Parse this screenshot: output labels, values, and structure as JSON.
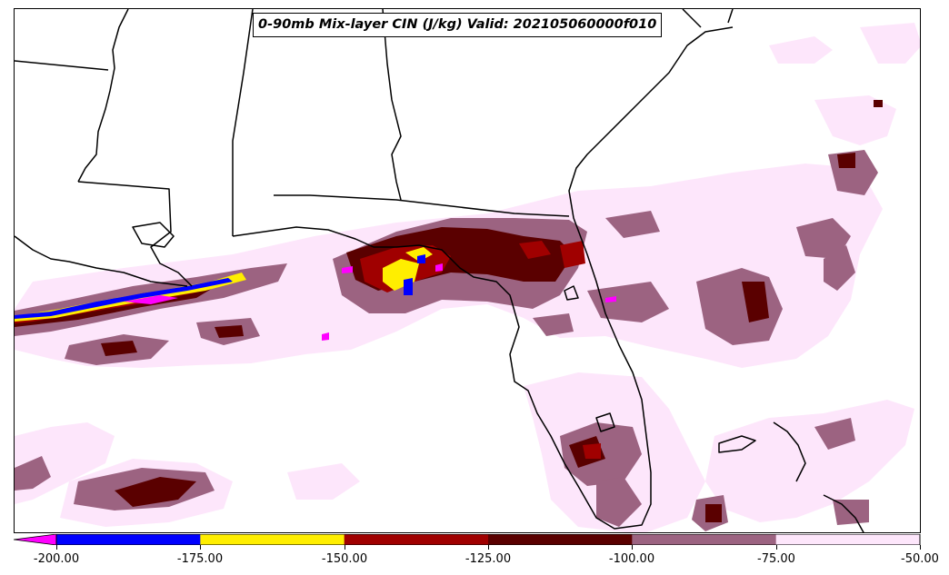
{
  "title": "0-90mb Mix-layer CIN (J/kg) Valid: 202105060000f010",
  "colorbar": {
    "levels": [
      "-200.00",
      "-175.00",
      "-150.00",
      "-125.00",
      "-100.00",
      "-75.00",
      "-50.00"
    ],
    "extend_color": "#ff00ff",
    "colors": [
      "#0000ff",
      "#ffee00",
      "#a00000",
      "#5a0000",
      "#9c6381",
      "#fde6fb"
    ]
  }
}
